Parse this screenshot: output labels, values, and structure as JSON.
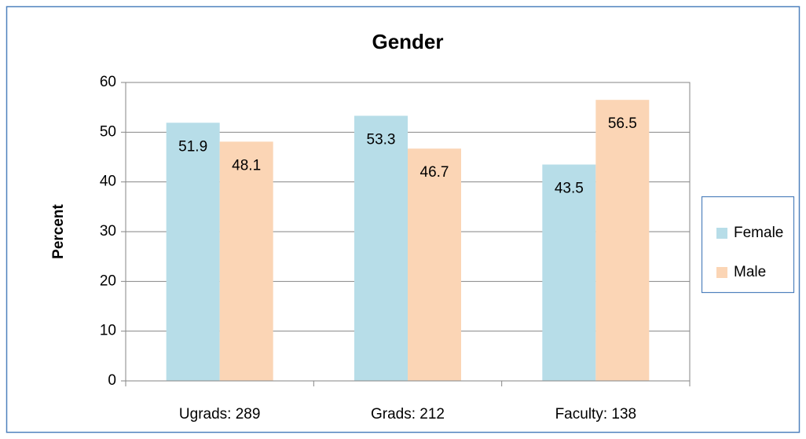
{
  "chart_data": {
    "type": "bar",
    "title": "Gender",
    "y_label": "Percent",
    "categories": [
      "Ugrads: 289",
      "Grads: 212",
      "Faculty: 138"
    ],
    "series": [
      {
        "name": "Female",
        "color": "#b7dde8",
        "values": [
          51.9,
          53.3,
          43.5
        ]
      },
      {
        "name": "Male",
        "color": "#fbd5b5",
        "values": [
          48.1,
          46.7,
          56.5
        ]
      }
    ],
    "ylim": [
      0,
      60
    ],
    "yticks": [
      0,
      10,
      20,
      30,
      40,
      50,
      60
    ],
    "grid": true,
    "legend": "right"
  }
}
